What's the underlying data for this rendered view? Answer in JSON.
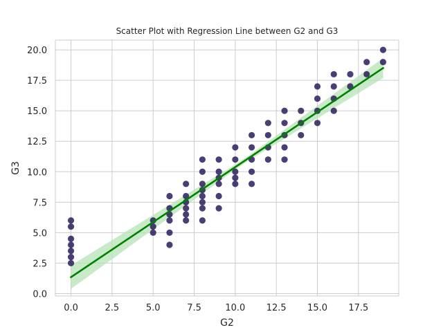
{
  "chart_data": {
    "type": "scatter",
    "title": "Scatter Plot with Regression Line between G2 and G3",
    "xlabel": "G2",
    "ylabel": "G3",
    "xlim": [
      -0.95,
      19.95
    ],
    "ylim": [
      -0.2,
      20.8
    ],
    "xticks": [
      0.0,
      2.5,
      5.0,
      7.5,
      10.0,
      12.5,
      15.0,
      17.5
    ],
    "yticks": [
      0.0,
      2.5,
      5.0,
      7.5,
      10.0,
      12.5,
      15.0,
      17.5,
      20.0
    ],
    "xtick_labels": [
      "0.0",
      "2.5",
      "5.0",
      "7.5",
      "10.0",
      "12.5",
      "15.0",
      "17.5"
    ],
    "ytick_labels": [
      "0.0",
      "2.5",
      "5.0",
      "7.5",
      "10.0",
      "12.5",
      "15.0",
      "17.5",
      "20.0"
    ],
    "grid": true,
    "point_color": "#2a1d5c",
    "line_color": "#008000",
    "band_color": "#b6e3b6",
    "points": [
      [
        0,
        6
      ],
      [
        0,
        5.5
      ],
      [
        0,
        4.5
      ],
      [
        0,
        4
      ],
      [
        0,
        3.5
      ],
      [
        0,
        3
      ],
      [
        0,
        2.5
      ],
      [
        5,
        6
      ],
      [
        5,
        5.5
      ],
      [
        5,
        5
      ],
      [
        6,
        8
      ],
      [
        6,
        7
      ],
      [
        6,
        6.5
      ],
      [
        6,
        6
      ],
      [
        6,
        5
      ],
      [
        6,
        4
      ],
      [
        7,
        9
      ],
      [
        7,
        8
      ],
      [
        7,
        7.5
      ],
      [
        7,
        7
      ],
      [
        7,
        6.5
      ],
      [
        7,
        6
      ],
      [
        8,
        11
      ],
      [
        8,
        10
      ],
      [
        8,
        9
      ],
      [
        8,
        8.5
      ],
      [
        8,
        8
      ],
      [
        8,
        7.5
      ],
      [
        8,
        7
      ],
      [
        8,
        6
      ],
      [
        9,
        11
      ],
      [
        9,
        10
      ],
      [
        9,
        9.5
      ],
      [
        9,
        9
      ],
      [
        9,
        8
      ],
      [
        9,
        7
      ],
      [
        10,
        12
      ],
      [
        10,
        11
      ],
      [
        10,
        10
      ],
      [
        10,
        9.5
      ],
      [
        10,
        9
      ],
      [
        11,
        13
      ],
      [
        11,
        12
      ],
      [
        11,
        11
      ],
      [
        11,
        10
      ],
      [
        11,
        9
      ],
      [
        12,
        14
      ],
      [
        12,
        13
      ],
      [
        12,
        12
      ],
      [
        12,
        11
      ],
      [
        13,
        15
      ],
      [
        13,
        14
      ],
      [
        13,
        13
      ],
      [
        13,
        12
      ],
      [
        13,
        11
      ],
      [
        14,
        15
      ],
      [
        14,
        14
      ],
      [
        14,
        13
      ],
      [
        15,
        17
      ],
      [
        15,
        16
      ],
      [
        15,
        15
      ],
      [
        15,
        14
      ],
      [
        16,
        18
      ],
      [
        16,
        17
      ],
      [
        16,
        16
      ],
      [
        16,
        15
      ],
      [
        17,
        18
      ],
      [
        17,
        17
      ],
      [
        18,
        19
      ],
      [
        18,
        18
      ],
      [
        19,
        20
      ],
      [
        19,
        19
      ]
    ],
    "regression": {
      "x_range": [
        0,
        19
      ],
      "intercept": 1.35,
      "slope": 0.903
    }
  }
}
